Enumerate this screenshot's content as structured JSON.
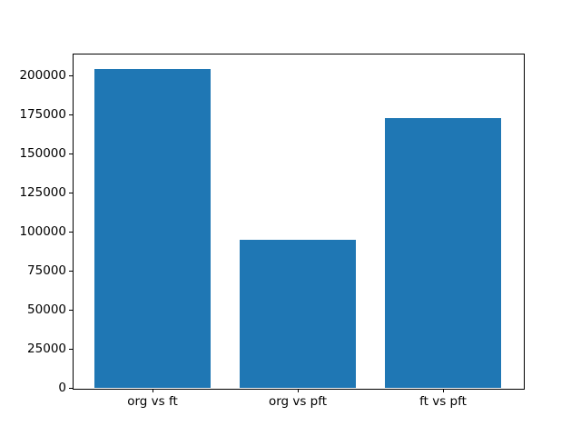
{
  "figure": {
    "background_color": "#ffffff",
    "frame_color": "#000000",
    "tick_color": "#000000"
  },
  "chart_data": {
    "type": "bar",
    "categories": [
      "org vs ft",
      "org vs pft",
      "ft vs pft"
    ],
    "values": [
      204000,
      95000,
      173000
    ],
    "ytick_labels": [
      "0",
      "25000",
      "50000",
      "75000",
      "100000",
      "125000",
      "150000",
      "175000",
      "200000"
    ],
    "yticks": [
      0,
      25000,
      50000,
      75000,
      100000,
      125000,
      150000,
      175000,
      200000
    ],
    "ylim": [
      0,
      214000
    ],
    "xlim": [
      -0.55,
      2.55
    ],
    "bar_width_fraction": 0.8,
    "bar_color": "#1f77b4",
    "grid": false,
    "legend": false,
    "title": "",
    "xlabel": "",
    "ylabel": ""
  }
}
